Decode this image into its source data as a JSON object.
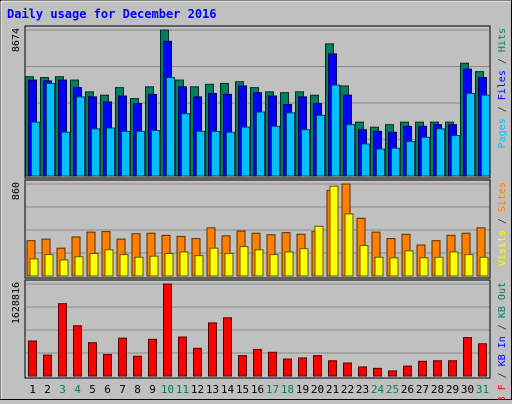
{
  "chart_data": {
    "type": "bar",
    "title": "Daily usage for December 2016",
    "x": [
      "1",
      "2",
      "3",
      "4",
      "5",
      "6",
      "7",
      "8",
      "9",
      "10",
      "11",
      "12",
      "13",
      "14",
      "15",
      "16",
      "17",
      "18",
      "19",
      "20",
      "21",
      "22",
      "23",
      "24",
      "25",
      "26",
      "27",
      "28",
      "29",
      "30",
      "31"
    ],
    "weekend_days": [
      "3",
      "4",
      "10",
      "11",
      "17",
      "18",
      "24",
      "25",
      "31"
    ],
    "panels": [
      {
        "name": "hits-files-pages",
        "ymax_label": "8674",
        "ymax": 8674,
        "axis_label_parts": [
          {
            "text": "Pages",
            "color": "#00c0ff"
          },
          {
            "text": " / ",
            "color": "#303030"
          },
          {
            "text": "Files",
            "color": "#0000ff"
          },
          {
            "text": " / ",
            "color": "#303030"
          },
          {
            "text": "Hits",
            "color": "#008060"
          }
        ],
        "series": [
          {
            "name": "Hits",
            "color": "#008060",
            "values": [
              5900,
              5850,
              5900,
              5700,
              5000,
              4800,
              5250,
              4600,
              5300,
              8674,
              5700,
              5300,
              5450,
              5500,
              5600,
              5250,
              5000,
              4950,
              5000,
              4800,
              7850,
              5350,
              3200,
              2900,
              3050,
              3200,
              3200,
              3200,
              3200,
              6700,
              6200
            ]
          },
          {
            "name": "Files",
            "color": "#0000ff",
            "values": [
              5700,
              5650,
              5700,
              5250,
              4700,
              4400,
              4750,
              4300,
              4850,
              8000,
              5300,
              4700,
              4900,
              4850,
              5350,
              4950,
              4750,
              4250,
              4700,
              4300,
              7250,
              4800,
              2750,
              2650,
              2600,
              2950,
              2950,
              3050,
              3050,
              6350,
              5850
            ]
          },
          {
            "name": "Pages",
            "color": "#00c0ff",
            "values": [
              3200,
              5500,
              2600,
              4700,
              2800,
              2850,
              2650,
              2650,
              2700,
              5850,
              3700,
              2650,
              2650,
              2600,
              2900,
              3800,
              2950,
              3750,
              2750,
              3600,
              5400,
              3050,
              1900,
              1600,
              1650,
              2050,
              2300,
              2800,
              2400,
              4900,
              4800
            ]
          }
        ]
      },
      {
        "name": "visits-sites",
        "ymax_label": "860",
        "ymax": 860,
        "axis_label_parts": [
          {
            "text": "Visits",
            "color": "#ffff00"
          },
          {
            "text": " / ",
            "color": "#303030"
          },
          {
            "text": "Sites",
            "color": "#ff8000"
          }
        ],
        "series": [
          {
            "name": "Sites",
            "color": "#ff8000",
            "values": [
              330,
              345,
              260,
              365,
              410,
              415,
              345,
              395,
              400,
              380,
              370,
              350,
              450,
              375,
              420,
              400,
              385,
              405,
              390,
              415,
              800,
              860,
              540,
              410,
              350,
              390,
              290,
              330,
              380,
              400,
              450
            ]
          },
          {
            "name": "Visits",
            "color": "#ffff00",
            "values": [
              160,
              200,
              150,
              180,
              210,
              245,
              200,
              175,
              185,
              210,
              225,
              190,
              260,
              210,
              275,
              245,
              200,
              225,
              255,
              465,
              840,
              580,
              285,
              175,
              170,
              235,
              170,
              175,
              225,
              200,
              175
            ]
          }
        ]
      },
      {
        "name": "kb",
        "ymax_label": "1628816",
        "ymax": 1628816,
        "axis_label_parts": [
          {
            "text": "KB F",
            "color": "#ff0000"
          },
          {
            "text": " / ",
            "color": "#303030"
          },
          {
            "text": "KB In",
            "color": "#0000ff"
          },
          {
            "text": " / ",
            "color": "#303030"
          },
          {
            "text": "KB Out",
            "color": "#008060"
          }
        ],
        "series": [
          {
            "name": "KB F",
            "color": "#ff0000",
            "values": [
              620000,
              370000,
              1280000,
              890000,
              590000,
              380000,
              670000,
              350000,
              650000,
              1628816,
              690000,
              490000,
              940000,
              1030000,
              360000,
              470000,
              420000,
              300000,
              320000,
              360000,
              270000,
              230000,
              160000,
              135000,
              90000,
              175000,
              260000,
              270000,
              270000,
              680000,
              570000
            ]
          }
        ]
      }
    ]
  },
  "colors": {
    "background": "#c0c0c0",
    "title": "#0000ff",
    "weekday_label": "#000000",
    "weekend_label": "#008060"
  }
}
